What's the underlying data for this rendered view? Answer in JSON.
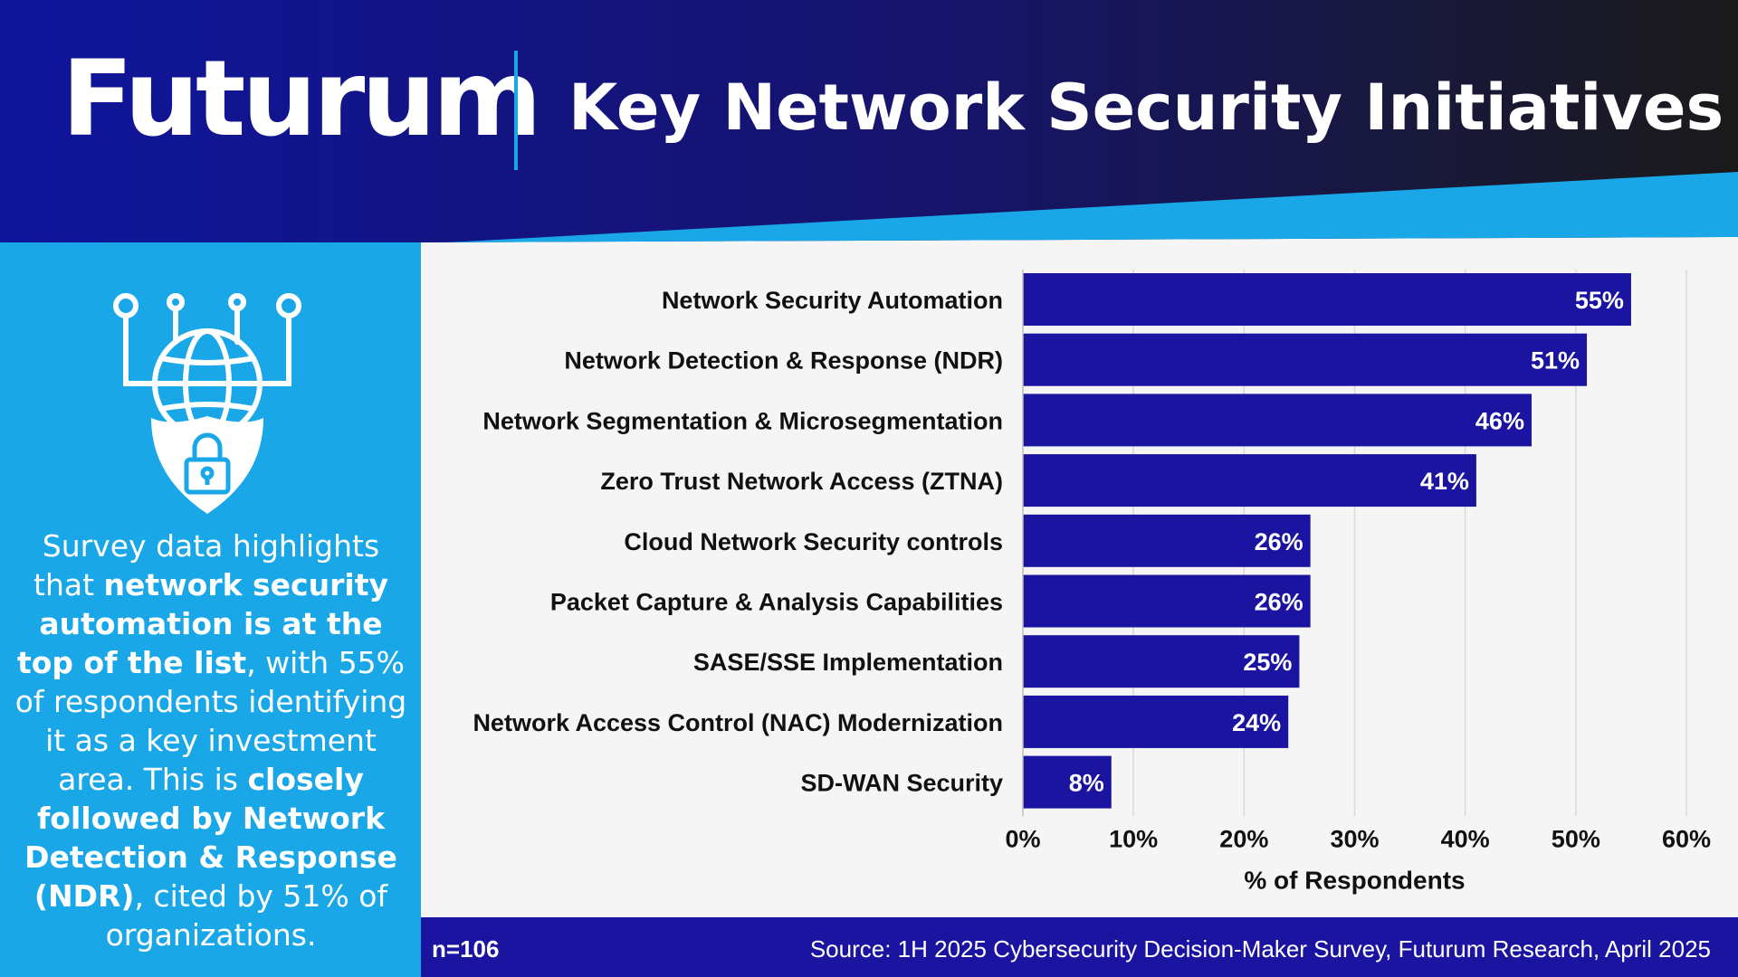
{
  "header": {
    "logo": "Futurum",
    "title": "Key Network Security Initiatives"
  },
  "sidebar": {
    "icon": "globe-shield-lock-icon",
    "text_parts": [
      {
        "text": "Survey data highlights that ",
        "bold": false
      },
      {
        "text": "network security automation is at the top of the list",
        "bold": true
      },
      {
        "text": ", with 55% of respondents identifying it as a key investment area. This is ",
        "bold": false
      },
      {
        "text": "closely followed by Network Detection & Response (NDR)",
        "bold": true
      },
      {
        "text": ", cited by 51% of organizations.",
        "bold": false
      }
    ]
  },
  "chart_data": {
    "type": "bar",
    "orientation": "horizontal",
    "categories": [
      "Network Security Automation",
      "Network Detection & Response (NDR)",
      "Network Segmentation & Microsegmentation",
      "Zero Trust Network Access (ZTNA)",
      "Cloud Network Security controls",
      "Packet Capture & Analysis Capabilities",
      "SASE/SSE Implementation",
      "Network Access Control (NAC) Modernization",
      "SD-WAN Security"
    ],
    "values": [
      55,
      51,
      46,
      41,
      26,
      26,
      25,
      24,
      8
    ],
    "data_labels": [
      "55%",
      "51%",
      "46%",
      "41%",
      "26%",
      "26%",
      "25%",
      "24%",
      "8%"
    ],
    "xlabel": "% of Respondents",
    "xlim": [
      0,
      60
    ],
    "xticks": [
      "0%",
      "10%",
      "20%",
      "30%",
      "40%",
      "50%",
      "60%"
    ],
    "grid": true,
    "bar_color": "#1a14a0"
  },
  "footer": {
    "n": "n=106",
    "source": "Source: 1H 2025 Cybersecurity Decision-Maker Survey, Futurum Research, April 2025"
  },
  "colors": {
    "navy": "#1a14a0",
    "sky_blue": "#1aa7e8",
    "dark": "#181818"
  }
}
